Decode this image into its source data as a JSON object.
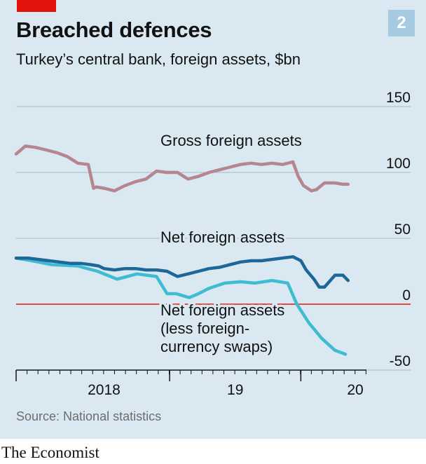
{
  "header": {
    "title": "Breached defences",
    "subtitle": "Turkey’s central bank, foreign assets, $bn",
    "badge": "2"
  },
  "footer": {
    "source": "Source: National statistics",
    "brand": "The Economist"
  },
  "colors": {
    "background": "#d9e8f1",
    "accent_red": "#e3120b",
    "gross": "#b5868e",
    "net": "#1d6799",
    "net_less_swaps": "#3ebcd2",
    "badge": "#a6cbe0"
  },
  "chart_data": {
    "type": "line",
    "title": "Breached defences",
    "subtitle": "Turkey’s central bank, foreign assets, $bn",
    "ylim": [
      -50,
      150
    ],
    "yticks": [
      150,
      100,
      50,
      0,
      -50
    ],
    "ytick_labels": [
      "150",
      "100",
      "50",
      "0",
      "-50"
    ],
    "xlim": [
      2017.83,
      2020.5
    ],
    "xticks_labeled": [
      {
        "x": 2018.5,
        "label": "2018"
      },
      {
        "x": 2019.5,
        "label": "19"
      },
      {
        "x": 2020.5,
        "label": "20"
      }
    ],
    "year_boundaries": [
      2019.0,
      2020.0
    ],
    "grid": true,
    "zero_line_color": "#e3120b",
    "series": [
      {
        "name": "Gross foreign assets",
        "label_lines": [
          "Gross foreign assets"
        ],
        "color": "#b5868e",
        "x": [
          2017.83,
          2017.9,
          2017.98,
          2018.06,
          2018.14,
          2018.22,
          2018.3,
          2018.38,
          2018.42,
          2018.44,
          2018.5,
          2018.58,
          2018.66,
          2018.74,
          2018.82,
          2018.9,
          2018.98,
          2019.06,
          2019.14,
          2019.22,
          2019.3,
          2019.38,
          2019.46,
          2019.54,
          2019.62,
          2019.7,
          2019.78,
          2019.86,
          2019.94,
          2019.98,
          2020.02,
          2020.08,
          2020.12,
          2020.18,
          2020.26,
          2020.32,
          2020.36
        ],
        "values": [
          114,
          120,
          119,
          117,
          115,
          112,
          107,
          106,
          88,
          89,
          88,
          86,
          90,
          93,
          95,
          101,
          100,
          100,
          95,
          97,
          100,
          102,
          104,
          106,
          107,
          106,
          107,
          106,
          108,
          97,
          90,
          86,
          87,
          92,
          92,
          91,
          91
        ]
      },
      {
        "name": "Net foreign assets",
        "label_lines": [
          "Net foreign assets"
        ],
        "color": "#1d6799",
        "x": [
          2017.83,
          2017.92,
          2018.0,
          2018.08,
          2018.16,
          2018.24,
          2018.32,
          2018.4,
          2018.46,
          2018.5,
          2018.58,
          2018.66,
          2018.74,
          2018.82,
          2018.9,
          2018.98,
          2019.06,
          2019.14,
          2019.22,
          2019.3,
          2019.38,
          2019.46,
          2019.54,
          2019.62,
          2019.7,
          2019.78,
          2019.86,
          2019.94,
          2020.0,
          2020.04,
          2020.1,
          2020.14,
          2020.18,
          2020.26,
          2020.32,
          2020.36
        ],
        "values": [
          35,
          35,
          34,
          33,
          32,
          31,
          31,
          30,
          29,
          27,
          26,
          27,
          27,
          26,
          26,
          25,
          21,
          23,
          25,
          27,
          28,
          30,
          32,
          33,
          33,
          34,
          35,
          36,
          33,
          26,
          19,
          13,
          13,
          22,
          22,
          18
        ]
      },
      {
        "name": "Net foreign assets (less foreign-currency swaps)",
        "label_lines": [
          "Net foreign assets",
          "(less foreign-",
          "currency swaps)"
        ],
        "color": "#3ebcd2",
        "x": [
          2017.83,
          2017.95,
          2018.1,
          2018.3,
          2018.45,
          2018.6,
          2018.75,
          2018.9,
          2018.98,
          2019.05,
          2019.15,
          2019.22,
          2019.3,
          2019.42,
          2019.54,
          2019.65,
          2019.78,
          2019.9,
          2019.97,
          2020.06,
          2020.16,
          2020.26,
          2020.34
        ],
        "values": [
          35,
          33,
          30,
          29,
          25,
          19,
          23,
          21,
          8,
          8,
          5,
          8,
          12,
          16,
          17,
          16,
          18,
          16,
          0,
          -14,
          -26,
          -35,
          -38
        ]
      }
    ]
  }
}
